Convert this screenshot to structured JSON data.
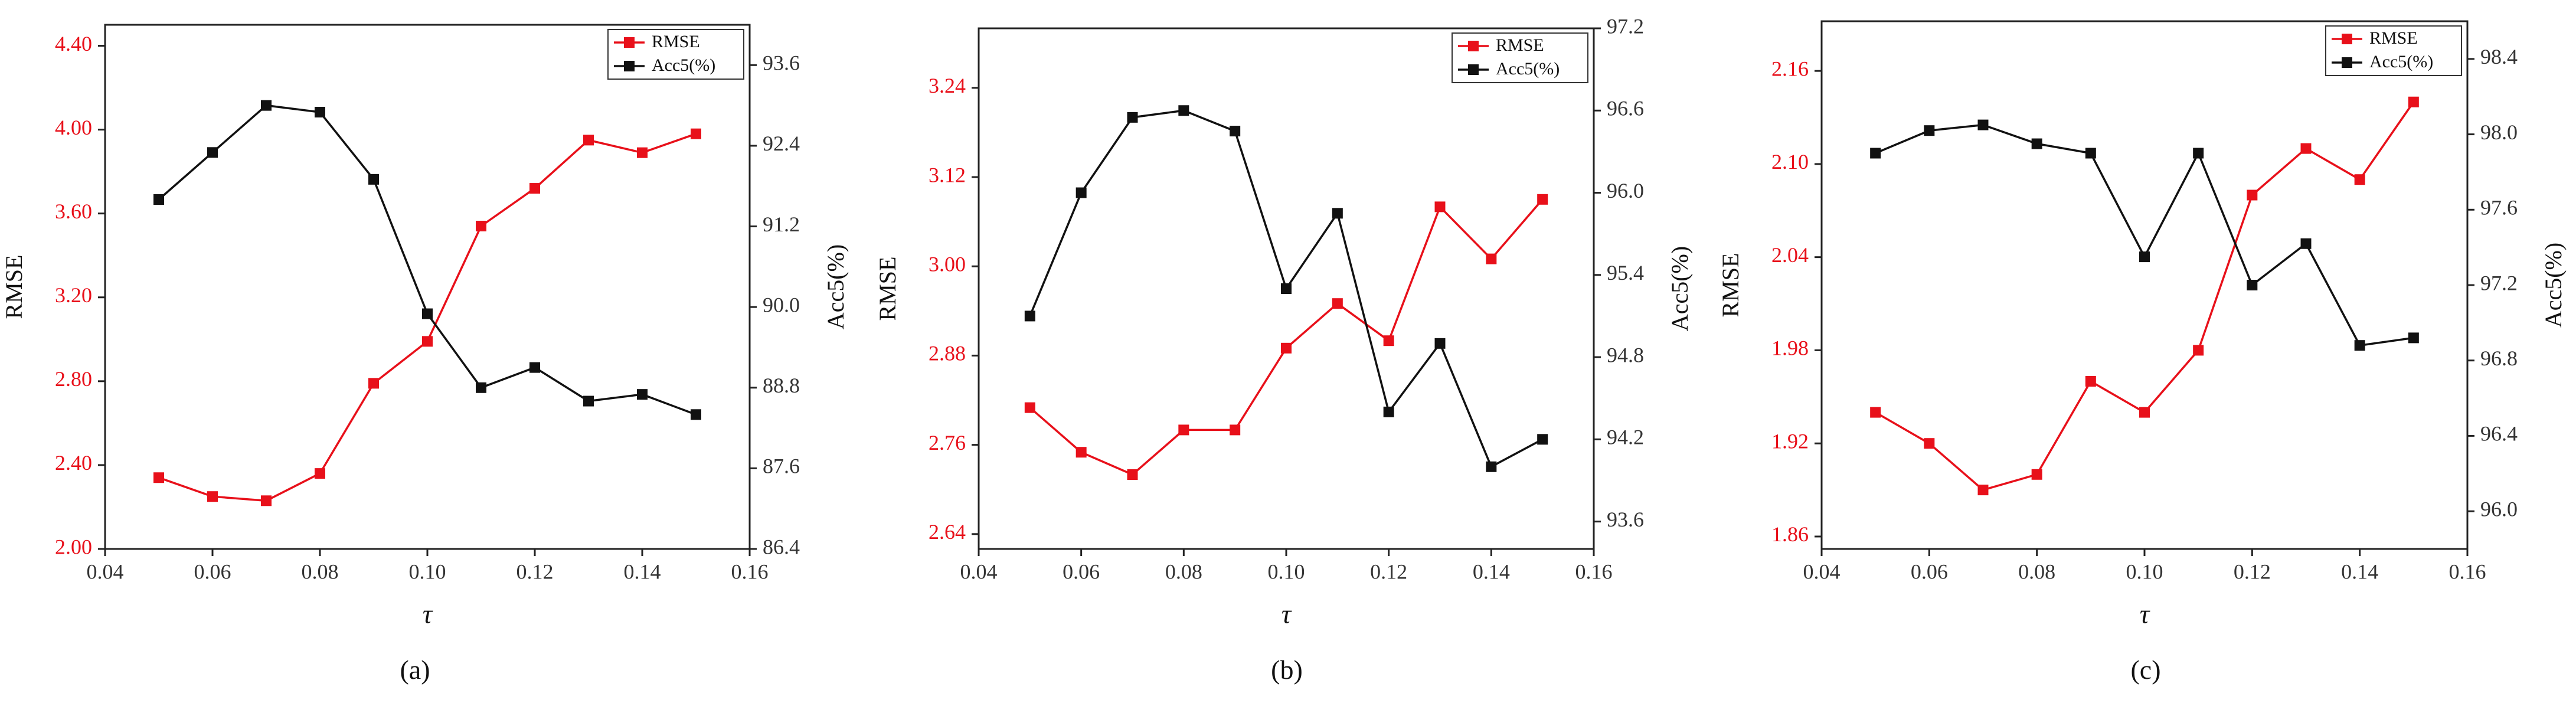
{
  "figure": {
    "legend": {
      "rmse": "RMSE",
      "acc": "Acc5(%)"
    },
    "colors": {
      "rmse": "#e8101a",
      "acc": "#111111",
      "axis": "#222222"
    }
  },
  "chart_data": [
    {
      "type": "line",
      "caption": "(a)",
      "xlabel": "τ",
      "ylabel_left": "RMSE",
      "ylabel_right": "Acc5(%)",
      "x": [
        0.05,
        0.06,
        0.07,
        0.08,
        0.09,
        0.1,
        0.11,
        0.12,
        0.13,
        0.14,
        0.15
      ],
      "xlim": [
        0.04,
        0.16
      ],
      "x_ticks": [
        "0.04",
        "0.06",
        "0.08",
        "0.10",
        "0.12",
        "0.14",
        "0.16"
      ],
      "ylim_left": [
        2.0,
        4.5
      ],
      "y_left_ticks": [
        "2.00",
        "2.40",
        "2.80",
        "3.20",
        "3.60",
        "4.00",
        "4.40"
      ],
      "ylim_right": [
        86.4,
        94.2
      ],
      "y_right_ticks": [
        "86.4",
        "87.6",
        "88.8",
        "90.0",
        "91.2",
        "92.4",
        "93.6"
      ],
      "legend_position": "top-right",
      "grid": false,
      "series": [
        {
          "name": "RMSE",
          "axis": "left",
          "values": [
            2.34,
            2.25,
            2.23,
            2.36,
            2.79,
            2.99,
            3.54,
            3.72,
            3.95,
            3.89,
            3.98
          ]
        },
        {
          "name": "Acc5(%)",
          "axis": "right",
          "values": [
            91.6,
            92.3,
            93.0,
            92.9,
            91.9,
            89.9,
            88.8,
            89.1,
            88.6,
            88.7,
            88.4
          ]
        }
      ]
    },
    {
      "type": "line",
      "caption": "(b)",
      "xlabel": "τ",
      "ylabel_left": "RMSE",
      "ylabel_right": "Acc5(%)",
      "x": [
        0.05,
        0.06,
        0.07,
        0.08,
        0.09,
        0.1,
        0.11,
        0.12,
        0.13,
        0.14,
        0.15
      ],
      "xlim": [
        0.04,
        0.16
      ],
      "x_ticks": [
        "0.04",
        "0.06",
        "0.08",
        "0.10",
        "0.12",
        "0.14",
        "0.16"
      ],
      "ylim_left": [
        2.62,
        3.32
      ],
      "y_left_ticks": [
        "2.64",
        "2.76",
        "2.88",
        "3.00",
        "3.12",
        "3.24"
      ],
      "ylim_right": [
        93.4,
        97.2
      ],
      "y_right_ticks": [
        "93.6",
        "94.2",
        "94.8",
        "95.4",
        "96.0",
        "96.6",
        "97.2"
      ],
      "legend_position": "top-right",
      "grid": false,
      "series": [
        {
          "name": "RMSE",
          "axis": "left",
          "values": [
            2.81,
            2.75,
            2.72,
            2.78,
            2.78,
            2.89,
            2.95,
            2.9,
            3.08,
            3.01,
            3.09
          ]
        },
        {
          "name": "Acc5(%)",
          "axis": "right",
          "values": [
            95.1,
            96.0,
            96.55,
            96.6,
            96.45,
            95.3,
            95.85,
            94.4,
            94.9,
            94.0,
            94.2
          ]
        }
      ]
    },
    {
      "type": "line",
      "caption": "(c)",
      "xlabel": "τ",
      "ylabel_left": "RMSE",
      "ylabel_right": "Acc5(%)",
      "x": [
        0.05,
        0.06,
        0.07,
        0.08,
        0.09,
        0.1,
        0.11,
        0.12,
        0.13,
        0.14,
        0.15
      ],
      "xlim": [
        0.04,
        0.16
      ],
      "x_ticks": [
        "0.04",
        "0.06",
        "0.08",
        "0.10",
        "0.12",
        "0.14",
        "0.16"
      ],
      "ylim_left": [
        1.852,
        2.192
      ],
      "y_left_ticks": [
        "1.86",
        "1.92",
        "1.98",
        "2.04",
        "2.10",
        "2.16"
      ],
      "ylim_right": [
        95.8,
        98.6
      ],
      "y_right_ticks": [
        "96.0",
        "96.4",
        "96.8",
        "97.2",
        "97.6",
        "98.0",
        "98.4"
      ],
      "legend_position": "top-right",
      "grid": false,
      "series": [
        {
          "name": "RMSE",
          "axis": "left",
          "values": [
            1.94,
            1.92,
            1.89,
            1.9,
            1.96,
            1.94,
            1.98,
            2.08,
            2.11,
            2.09,
            2.14
          ]
        },
        {
          "name": "Acc5(%)",
          "axis": "right",
          "values": [
            97.9,
            98.02,
            98.05,
            97.95,
            97.9,
            97.35,
            97.9,
            97.2,
            97.42,
            96.88,
            96.92
          ]
        }
      ]
    }
  ]
}
